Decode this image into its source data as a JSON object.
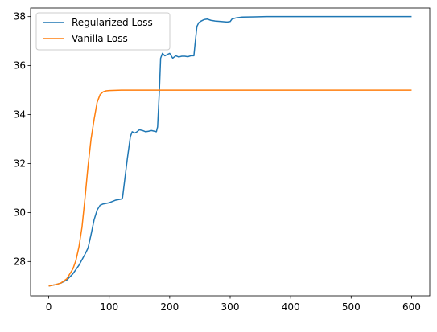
{
  "chart_data": {
    "type": "line",
    "title": "",
    "xlabel": "",
    "ylabel": "",
    "xlim": [
      -30,
      630
    ],
    "ylim": [
      26.6,
      38.35
    ],
    "x_ticks": [
      0,
      100,
      200,
      300,
      400,
      500,
      600
    ],
    "y_ticks": [
      28,
      30,
      32,
      34,
      36,
      38
    ],
    "grid": false,
    "legend_position": "upper-left",
    "series": [
      {
        "name": "Regularized Loss",
        "color": "#1f77b4",
        "x": [
          0,
          10,
          20,
          30,
          40,
          50,
          60,
          65,
          70,
          75,
          80,
          85,
          90,
          100,
          110,
          120,
          122,
          125,
          130,
          135,
          138,
          142,
          145,
          150,
          155,
          160,
          165,
          170,
          178,
          180,
          183,
          185,
          188,
          192,
          196,
          200,
          205,
          210,
          215,
          220,
          225,
          230,
          235,
          240,
          242,
          245,
          248,
          252,
          257,
          262,
          268,
          275,
          285,
          295,
          300,
          303,
          310,
          320,
          340,
          360,
          400,
          450,
          500,
          550,
          600
        ],
        "y": [
          27.0,
          27.05,
          27.12,
          27.25,
          27.5,
          27.85,
          28.3,
          28.55,
          29.1,
          29.7,
          30.1,
          30.3,
          30.35,
          30.4,
          30.5,
          30.55,
          30.6,
          31.2,
          32.2,
          33.1,
          33.3,
          33.25,
          33.28,
          33.38,
          33.35,
          33.3,
          33.32,
          33.35,
          33.3,
          33.5,
          35.0,
          36.3,
          36.5,
          36.4,
          36.45,
          36.5,
          36.3,
          36.4,
          36.35,
          36.38,
          36.38,
          36.36,
          36.4,
          36.4,
          36.9,
          37.6,
          37.75,
          37.82,
          37.88,
          37.9,
          37.85,
          37.82,
          37.8,
          37.78,
          37.8,
          37.9,
          37.95,
          37.98,
          37.99,
          38.0,
          38.0,
          38.0,
          38.0,
          38.0,
          38.0
        ]
      },
      {
        "name": "Vanilla Loss",
        "color": "#ff7f0e",
        "x": [
          0,
          10,
          20,
          30,
          40,
          45,
          50,
          55,
          60,
          65,
          70,
          75,
          80,
          85,
          90,
          95,
          100,
          110,
          120,
          150,
          200,
          300,
          400,
          500,
          600
        ],
        "y": [
          27.0,
          27.05,
          27.12,
          27.3,
          27.7,
          28.05,
          28.6,
          29.4,
          30.6,
          31.9,
          33.0,
          33.8,
          34.5,
          34.82,
          34.93,
          34.97,
          34.98,
          34.99,
          35.0,
          35.0,
          35.0,
          35.0,
          35.0,
          35.0,
          35.0
        ]
      }
    ]
  }
}
